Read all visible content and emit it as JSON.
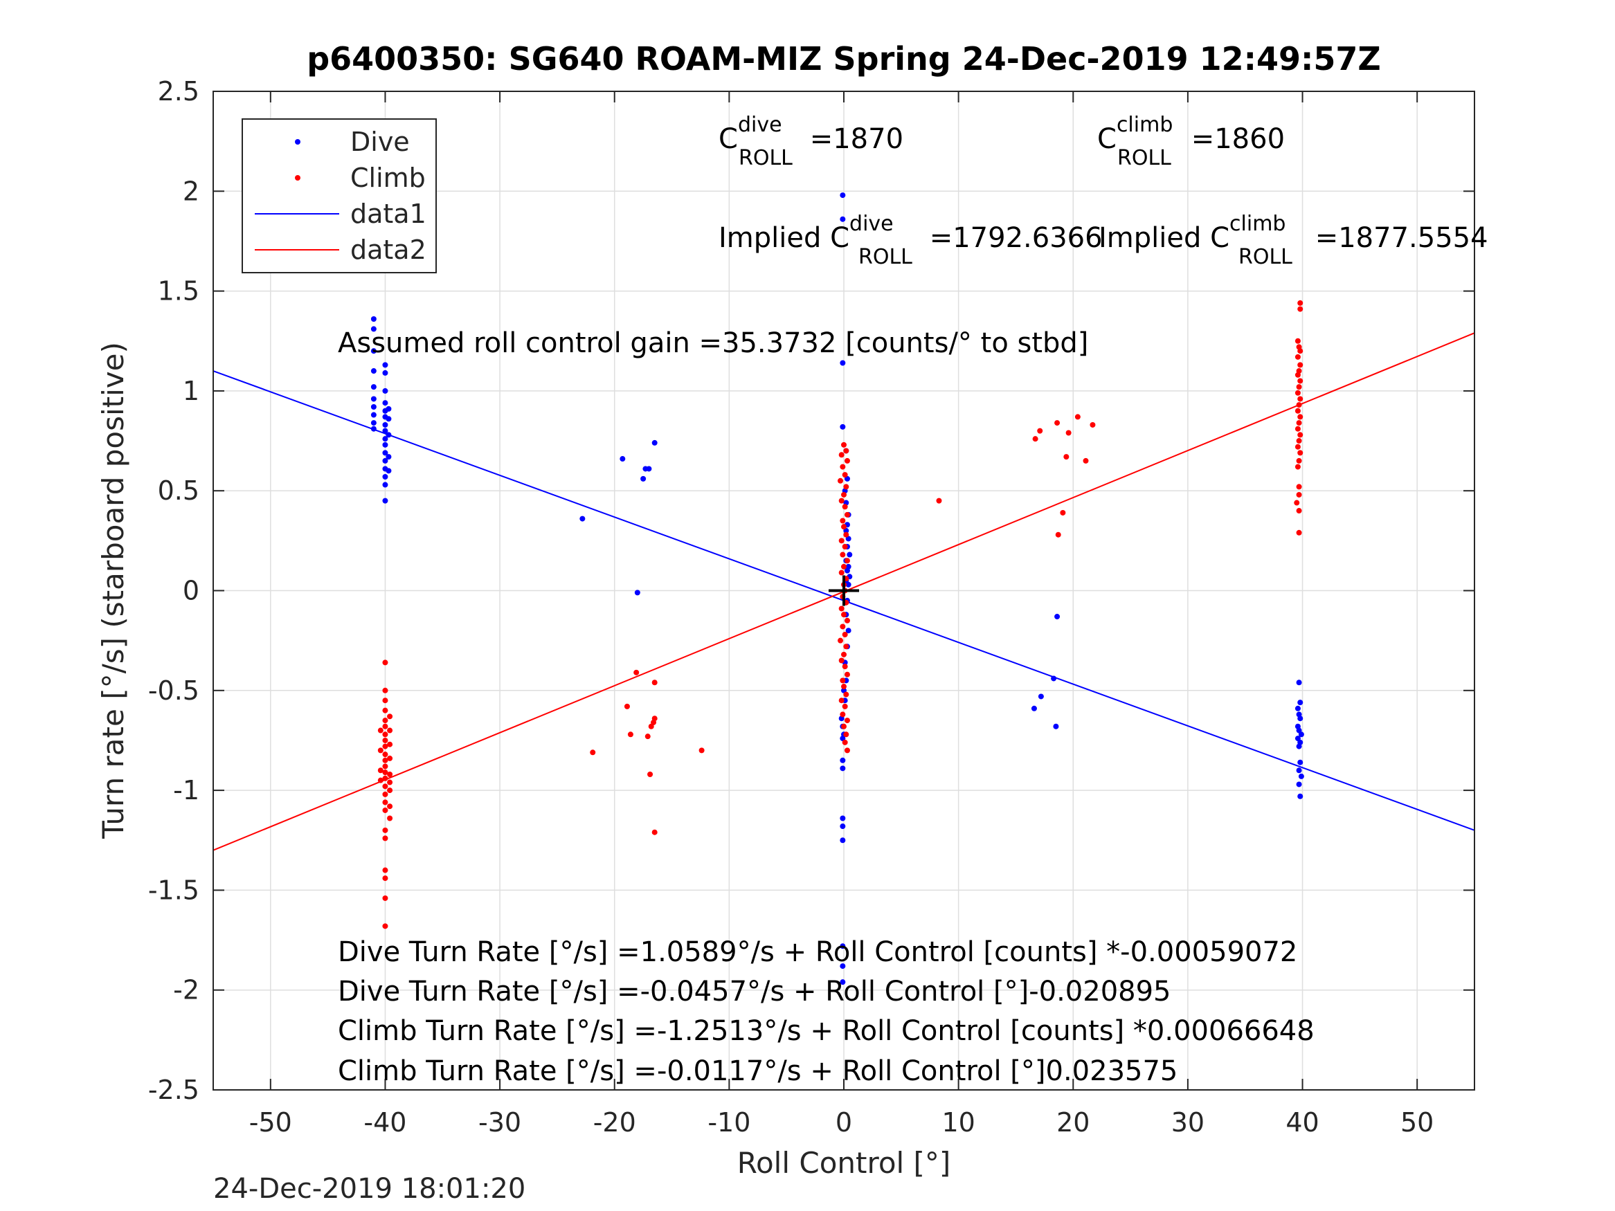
{
  "chart_data": {
    "type": "scatter",
    "title": "p6400350: SG640 ROAM-MIZ Spring 24-Dec-2019 12:49:57Z",
    "xlabel": "Roll Control [°]",
    "ylabel": "Turn rate [°/s] (starboard positive)",
    "xlim": [
      -55,
      55
    ],
    "ylim": [
      -2.5,
      2.5
    ],
    "xticks": [
      -50,
      -40,
      -30,
      -20,
      -10,
      0,
      10,
      20,
      30,
      40,
      50
    ],
    "xtick_labels": [
      "-50",
      "-40",
      "-30",
      "-20",
      "-10",
      "0",
      "10",
      "20",
      "30",
      "40",
      "50"
    ],
    "yticks": [
      -2.5,
      -2,
      -1.5,
      -1,
      -0.5,
      0,
      0.5,
      1,
      1.5,
      2,
      2.5
    ],
    "ytick_labels": [
      "-2.5",
      "-2",
      "-1.5",
      "-1",
      "-0.5",
      "0",
      "0.5",
      "1",
      "1.5",
      "2",
      "2.5"
    ],
    "grid": true,
    "legend_position": "top-left",
    "legend": [
      {
        "name": "Dive",
        "kind": "marker",
        "color": "#0000ff"
      },
      {
        "name": "Climb",
        "kind": "marker",
        "color": "#ff0000"
      },
      {
        "name": "data1",
        "kind": "line",
        "color": "#0000ff"
      },
      {
        "name": "data2",
        "kind": "line",
        "color": "#ff0000"
      }
    ],
    "series": [
      {
        "name": "Dive",
        "kind": "scatter",
        "color": "#0000ff",
        "points": [
          [
            -41.0,
            1.36
          ],
          [
            -41.0,
            1.31
          ],
          [
            -41.0,
            1.2
          ],
          [
            -41.0,
            1.1
          ],
          [
            -41.0,
            1.02
          ],
          [
            -41.0,
            0.96
          ],
          [
            -41.0,
            0.92
          ],
          [
            -41.0,
            0.88
          ],
          [
            -41.0,
            0.84
          ],
          [
            -41.0,
            0.81
          ],
          [
            -40.0,
            1.13
          ],
          [
            -40.0,
            1.09
          ],
          [
            -40.0,
            1.0
          ],
          [
            -40.0,
            0.94
          ],
          [
            -40.0,
            0.9
          ],
          [
            -40.0,
            0.87
          ],
          [
            -40.0,
            0.83
          ],
          [
            -40.0,
            0.8
          ],
          [
            -40.0,
            0.76
          ],
          [
            -40.0,
            0.73
          ],
          [
            -40.0,
            0.69
          ],
          [
            -40.0,
            0.65
          ],
          [
            -40.0,
            0.61
          ],
          [
            -40.0,
            0.57
          ],
          [
            -40.0,
            0.53
          ],
          [
            -40.0,
            0.45
          ],
          [
            -39.7,
            0.91
          ],
          [
            -39.7,
            0.86
          ],
          [
            -39.7,
            0.78
          ],
          [
            -39.7,
            0.67
          ],
          [
            -39.7,
            0.6
          ],
          [
            -22.8,
            0.36
          ],
          [
            -19.3,
            0.66
          ],
          [
            -17.3,
            0.61
          ],
          [
            -17.0,
            0.61
          ],
          [
            -17.5,
            0.56
          ],
          [
            -16.5,
            0.74
          ],
          [
            -18.0,
            -0.01
          ],
          [
            -0.1,
            1.98
          ],
          [
            -0.1,
            1.86
          ],
          [
            -0.1,
            1.14
          ],
          [
            -0.1,
            0.82
          ],
          [
            0.2,
            0.7
          ],
          [
            0.3,
            0.56
          ],
          [
            0.1,
            0.5
          ],
          [
            0.2,
            0.44
          ],
          [
            0.4,
            0.38
          ],
          [
            0.3,
            0.33
          ],
          [
            0.2,
            0.3
          ],
          [
            0.4,
            0.26
          ],
          [
            0.3,
            0.22
          ],
          [
            0.5,
            0.18
          ],
          [
            0.2,
            0.15
          ],
          [
            0.4,
            0.12
          ],
          [
            0.3,
            0.1
          ],
          [
            0.5,
            0.07
          ],
          [
            0.2,
            0.05
          ],
          [
            0.4,
            0.03
          ],
          [
            0.3,
            -0.05
          ],
          [
            0.2,
            -0.12
          ],
          [
            0.4,
            -0.2
          ],
          [
            0.3,
            -0.28
          ],
          [
            0.1,
            -0.36
          ],
          [
            0.2,
            -0.45
          ],
          [
            0.0,
            -0.5
          ],
          [
            0.1,
            -0.55
          ],
          [
            -0.2,
            -0.64
          ],
          [
            -0.1,
            -0.68
          ],
          [
            0.0,
            -0.72
          ],
          [
            -0.1,
            -0.74
          ],
          [
            -0.1,
            -0.85
          ],
          [
            -0.1,
            -0.89
          ],
          [
            -0.1,
            -1.14
          ],
          [
            -0.1,
            -1.18
          ],
          [
            -0.1,
            -1.25
          ],
          [
            -0.1,
            -1.78
          ],
          [
            -0.1,
            -1.88
          ],
          [
            -0.1,
            -1.96
          ],
          [
            16.6,
            -0.59
          ],
          [
            17.2,
            -0.53
          ],
          [
            18.3,
            -0.44
          ],
          [
            18.5,
            -0.68
          ],
          [
            18.6,
            -0.13
          ],
          [
            39.7,
            -0.46
          ],
          [
            39.8,
            -0.56
          ],
          [
            39.6,
            -0.59
          ],
          [
            39.7,
            -0.62
          ],
          [
            39.8,
            -0.64
          ],
          [
            39.6,
            -0.68
          ],
          [
            39.7,
            -0.7
          ],
          [
            39.9,
            -0.72
          ],
          [
            39.6,
            -0.74
          ],
          [
            39.8,
            -0.76
          ],
          [
            39.7,
            -0.78
          ],
          [
            39.8,
            -0.86
          ],
          [
            39.7,
            -0.9
          ],
          [
            39.9,
            -0.93
          ],
          [
            39.7,
            -0.97
          ],
          [
            39.8,
            -1.03
          ]
        ]
      },
      {
        "name": "Climb",
        "kind": "scatter",
        "color": "#ff0000",
        "points": [
          [
            -40.0,
            -0.36
          ],
          [
            -40.0,
            -0.5
          ],
          [
            -40.0,
            -0.55
          ],
          [
            -40.0,
            -0.6
          ],
          [
            -40.0,
            -0.65
          ],
          [
            -40.0,
            -0.68
          ],
          [
            -40.0,
            -0.72
          ],
          [
            -40.0,
            -0.75
          ],
          [
            -40.0,
            -0.78
          ],
          [
            -40.0,
            -0.82
          ],
          [
            -40.0,
            -0.85
          ],
          [
            -40.0,
            -0.88
          ],
          [
            -40.0,
            -0.91
          ],
          [
            -40.0,
            -0.94
          ],
          [
            -40.0,
            -0.98
          ],
          [
            -40.0,
            -1.02
          ],
          [
            -40.0,
            -1.06
          ],
          [
            -40.0,
            -1.1
          ],
          [
            -40.0,
            -1.2
          ],
          [
            -40.0,
            -1.24
          ],
          [
            -40.0,
            -1.4
          ],
          [
            -40.0,
            -1.44
          ],
          [
            -40.0,
            -1.54
          ],
          [
            -40.0,
            -1.68
          ],
          [
            -39.6,
            -0.63
          ],
          [
            -39.6,
            -0.7
          ],
          [
            -39.6,
            -0.77
          ],
          [
            -39.6,
            -0.84
          ],
          [
            -39.6,
            -0.92
          ],
          [
            -39.6,
            -0.96
          ],
          [
            -39.6,
            -1.0
          ],
          [
            -39.6,
            -1.08
          ],
          [
            -39.6,
            -1.14
          ],
          [
            -40.4,
            -0.7
          ],
          [
            -40.4,
            -0.8
          ],
          [
            -40.4,
            -0.9
          ],
          [
            -40.4,
            -0.95
          ],
          [
            -21.9,
            -0.81
          ],
          [
            -18.9,
            -0.58
          ],
          [
            -18.6,
            -0.72
          ],
          [
            -18.1,
            -0.41
          ],
          [
            -17.1,
            -0.73
          ],
          [
            -16.9,
            -0.92
          ],
          [
            -16.8,
            -0.68
          ],
          [
            -16.6,
            -0.66
          ],
          [
            -16.5,
            -0.64
          ],
          [
            -16.5,
            -0.46
          ],
          [
            -16.5,
            -1.21
          ],
          [
            -12.4,
            -0.8
          ],
          [
            0.0,
            0.73
          ],
          [
            0.2,
            0.7
          ],
          [
            -0.2,
            0.68
          ],
          [
            0.3,
            0.65
          ],
          [
            -0.1,
            0.62
          ],
          [
            0.1,
            0.58
          ],
          [
            -0.3,
            0.55
          ],
          [
            0.2,
            0.52
          ],
          [
            0.0,
            0.48
          ],
          [
            -0.2,
            0.45
          ],
          [
            0.1,
            0.42
          ],
          [
            0.3,
            0.38
          ],
          [
            -0.1,
            0.35
          ],
          [
            0.0,
            0.32
          ],
          [
            0.2,
            0.28
          ],
          [
            -0.2,
            0.25
          ],
          [
            0.1,
            0.22
          ],
          [
            -0.1,
            0.18
          ],
          [
            0.3,
            0.15
          ],
          [
            0.0,
            0.12
          ],
          [
            -0.2,
            0.09
          ],
          [
            0.2,
            0.06
          ],
          [
            0.0,
            0.03
          ],
          [
            0.1,
            0.0
          ],
          [
            -0.1,
            -0.03
          ],
          [
            0.2,
            -0.06
          ],
          [
            -0.2,
            -0.09
          ],
          [
            0.0,
            -0.12
          ],
          [
            0.3,
            -0.15
          ],
          [
            -0.1,
            -0.18
          ],
          [
            0.1,
            -0.22
          ],
          [
            -0.3,
            -0.25
          ],
          [
            0.2,
            -0.28
          ],
          [
            0.0,
            -0.32
          ],
          [
            -0.2,
            -0.35
          ],
          [
            0.1,
            -0.38
          ],
          [
            0.3,
            -0.42
          ],
          [
            -0.1,
            -0.45
          ],
          [
            0.0,
            -0.48
          ],
          [
            0.2,
            -0.52
          ],
          [
            -0.2,
            -0.55
          ],
          [
            0.1,
            -0.58
          ],
          [
            -0.1,
            -0.62
          ],
          [
            0.3,
            -0.65
          ],
          [
            0.0,
            -0.68
          ],
          [
            0.2,
            -0.72
          ],
          [
            0.1,
            -0.76
          ],
          [
            0.3,
            -0.8
          ],
          [
            8.3,
            0.45
          ],
          [
            16.7,
            0.76
          ],
          [
            17.1,
            0.8
          ],
          [
            18.6,
            0.84
          ],
          [
            18.7,
            0.28
          ],
          [
            19.1,
            0.39
          ],
          [
            19.4,
            0.67
          ],
          [
            19.6,
            0.79
          ],
          [
            20.4,
            0.87
          ],
          [
            21.1,
            0.65
          ],
          [
            21.7,
            0.83
          ],
          [
            39.8,
            1.44
          ],
          [
            39.8,
            1.41
          ],
          [
            39.6,
            1.25
          ],
          [
            39.7,
            1.22
          ],
          [
            39.8,
            1.2
          ],
          [
            39.6,
            1.17
          ],
          [
            39.8,
            1.13
          ],
          [
            39.7,
            1.1
          ],
          [
            39.6,
            1.08
          ],
          [
            39.8,
            1.05
          ],
          [
            39.7,
            1.02
          ],
          [
            39.6,
            0.99
          ],
          [
            39.8,
            0.96
          ],
          [
            39.7,
            0.93
          ],
          [
            39.6,
            0.9
          ],
          [
            39.8,
            0.87
          ],
          [
            39.7,
            0.84
          ],
          [
            39.6,
            0.81
          ],
          [
            39.8,
            0.78
          ],
          [
            39.7,
            0.75
          ],
          [
            39.6,
            0.72
          ],
          [
            39.8,
            0.69
          ],
          [
            39.7,
            0.65
          ],
          [
            39.6,
            0.62
          ],
          [
            39.7,
            0.52
          ],
          [
            39.7,
            0.48
          ],
          [
            39.5,
            0.44
          ],
          [
            39.7,
            0.4
          ],
          [
            39.7,
            0.29
          ]
        ]
      },
      {
        "name": "data1",
        "kind": "line",
        "color": "#0000ff",
        "x": [
          -55,
          55
        ],
        "y": [
          1.1,
          -1.2
        ]
      },
      {
        "name": "data2",
        "kind": "line",
        "color": "#ff0000",
        "x": [
          -55,
          55
        ],
        "y": [
          -1.3,
          1.29
        ]
      }
    ],
    "origin_marker": {
      "x": 0,
      "y": 0
    }
  },
  "annotations": {
    "c_roll_dive": {
      "prefix": "C",
      "sup": "dive",
      "sub": "ROLL",
      "value": " =1870"
    },
    "c_roll_climb": {
      "prefix": "C",
      "sup": "climb",
      "sub": "ROLL",
      "value": " =1860"
    },
    "implied_dive": {
      "prefix": "Implied C",
      "sup": "dive",
      "sub": "ROLL",
      "value": " =1792.6366"
    },
    "implied_climb": {
      "prefix": "Implied C",
      "sup": "climb",
      "sub": "ROLL",
      "value": " =1877.5554"
    },
    "gain": "Assumed roll control gain =35.3732 [counts/° to stbd]",
    "fit1": "Dive Turn Rate [°/s] =1.0589°/s + Roll Control [counts] *-0.00059072",
    "fit2": "Dive Turn Rate [°/s] =-0.0457°/s + Roll Control [°]-0.020895",
    "fit3": "Climb Turn Rate [°/s] =-1.2513°/s + Roll Control [counts] *0.00066648",
    "fit4": "Climb Turn Rate [°/s] =-0.0117°/s + Roll Control [°]0.023575"
  },
  "footer": {
    "timestamp": "24-Dec-2019 18:01:20"
  }
}
